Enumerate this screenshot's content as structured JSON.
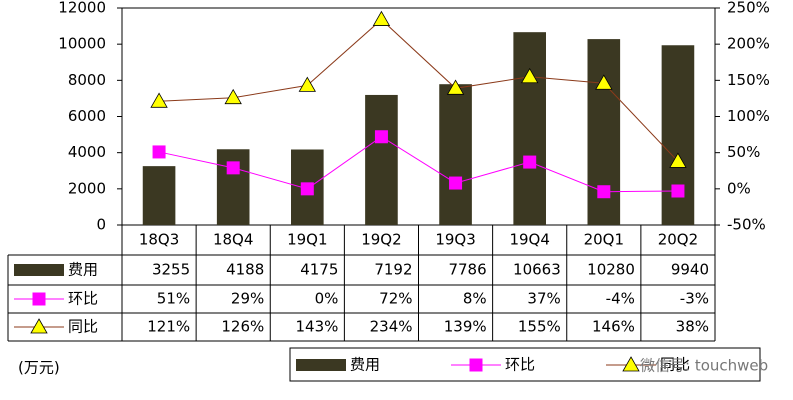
{
  "chart_data": {
    "type": "bar_line_table",
    "categories": [
      "18Q3",
      "18Q4",
      "19Q1",
      "19Q2",
      "19Q3",
      "19Q4",
      "20Q1",
      "20Q2"
    ],
    "series": [
      {
        "name": "费用",
        "type": "bar",
        "color": "#3b3822",
        "values": [
          3255,
          4188,
          4175,
          7192,
          7786,
          10663,
          10280,
          9940
        ]
      },
      {
        "name": "环比",
        "type": "line",
        "axis": "y2",
        "color": "#ff00ff",
        "marker": "square",
        "marker_color": "#ff00ff",
        "values": [
          51,
          29,
          0,
          72,
          8,
          37,
          -4,
          -3
        ],
        "value_labels": [
          "51%",
          "29%",
          "0%",
          "72%",
          "8%",
          "37%",
          "-4%",
          "-3%"
        ]
      },
      {
        "name": "同比",
        "type": "line",
        "axis": "y2",
        "color": "#8b3a1a",
        "marker": "triangle",
        "marker_color": "#ffff00",
        "values": [
          121,
          126,
          143,
          234,
          139,
          155,
          146,
          38
        ],
        "value_labels": [
          "121%",
          "126%",
          "143%",
          "234%",
          "139%",
          "155%",
          "146%",
          "38%"
        ]
      }
    ],
    "ylim": [
      0,
      12000
    ],
    "yticks": [
      0,
      2000,
      4000,
      6000,
      8000,
      10000,
      12000
    ],
    "y2lim": [
      -50,
      250
    ],
    "y2ticks": [
      {
        "value": -50,
        "label": "-50%"
      },
      {
        "value": 0,
        "label": "0%"
      },
      {
        "value": 50,
        "label": "50%"
      },
      {
        "value": 100,
        "label": "100%"
      },
      {
        "value": 150,
        "label": "150%"
      },
      {
        "value": 200,
        "label": "200%"
      },
      {
        "value": 250,
        "label": "250%"
      }
    ],
    "unit_label": "(万元)",
    "watermark": "微信号: touchweb"
  }
}
